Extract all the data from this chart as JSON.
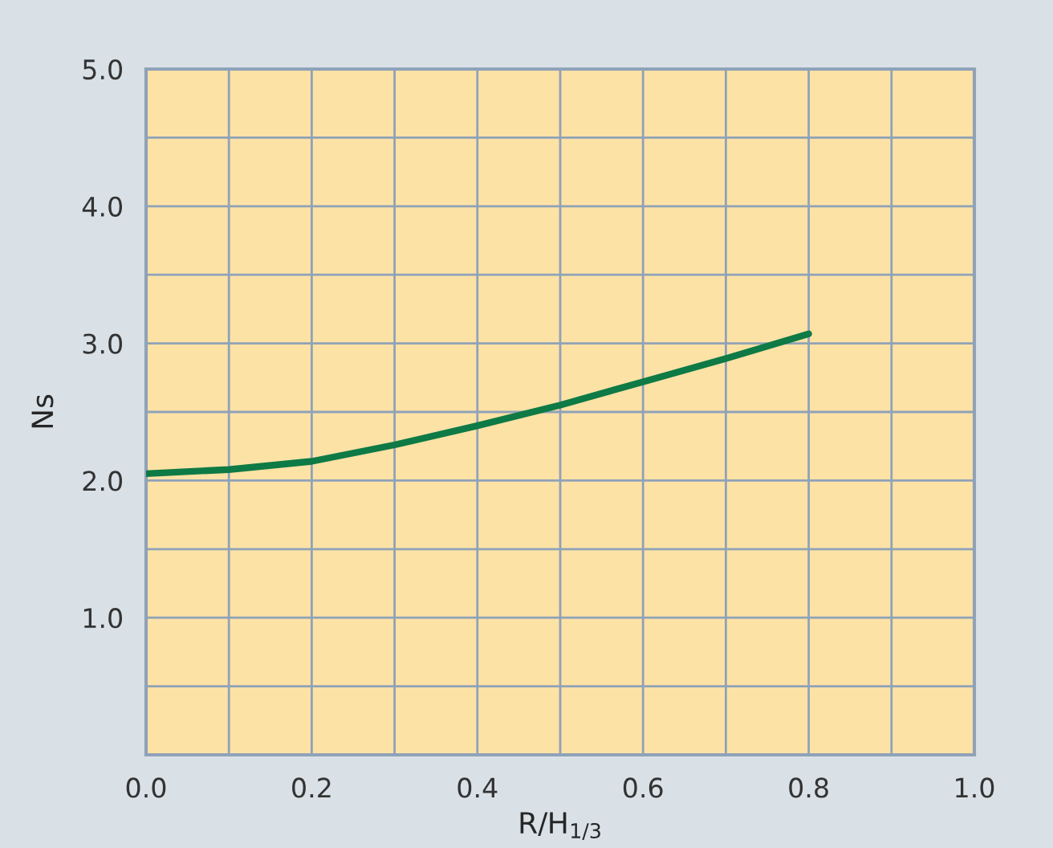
{
  "chart_data": {
    "type": "line",
    "xlabel": "R/H$_{1/3}$",
    "ylabel": "Ns",
    "x": [
      0,
      0.1,
      0.2,
      0.3,
      0.4,
      0.5,
      0.6,
      0.7,
      0.8
    ],
    "series": [
      {
        "color": "#0e7a45",
        "values": [
          2.05,
          2.08,
          2.14,
          2.26,
          2.4,
          2.55,
          2.72,
          2.89,
          3.07
        ]
      }
    ],
    "xlim": [
      0,
      1
    ],
    "ylim": [
      0,
      5
    ],
    "xticks": [
      {
        "value": 0,
        "label": "0.0"
      },
      {
        "value": 0.1,
        "label": null
      },
      0.2,
      {
        "value": 0.3,
        "label": null
      },
      0.4,
      {
        "value": 0.5,
        "label": null
      },
      0.6,
      {
        "value": 0.7,
        "label": null
      },
      0.8,
      {
        "value": 0.9,
        "label": null
      },
      {
        "value": 1,
        "label": "1.0"
      }
    ],
    "yticks": [
      {
        "value": 0,
        "label": null
      },
      {
        "value": 0.5,
        "label": null
      },
      {
        "value": 1,
        "label": "1.0"
      },
      {
        "value": 1.5,
        "label": null
      },
      {
        "value": 2,
        "label": "2.0"
      },
      {
        "value": 2.5,
        "label": null
      },
      {
        "value": 3,
        "label": "3.0"
      },
      {
        "value": 3.5,
        "label": null
      },
      {
        "value": 4,
        "label": "4.0"
      },
      {
        "value": 4.5,
        "label": null
      },
      {
        "value": 5,
        "label": "5.0"
      }
    ],
    "grid": true,
    "legend": false,
    "marker": "none",
    "line_style": "solid"
  }
}
